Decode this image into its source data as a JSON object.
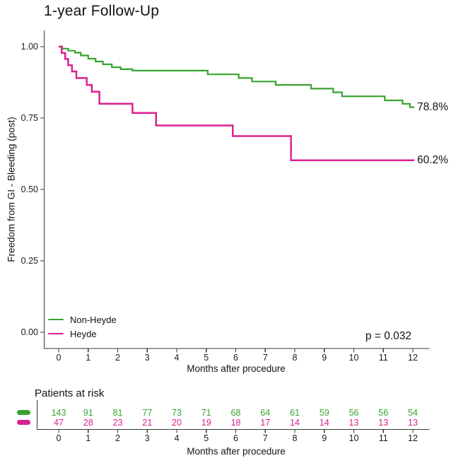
{
  "chart_data": {
    "type": "line",
    "subtype": "kaplan-meier-step",
    "title": "1-year Follow-Up",
    "xlabel": "Months after procedure",
    "ylabel": "Freedom from GI - Bleeding (post)",
    "xlim": [
      0,
      12
    ],
    "ylim": [
      0.0,
      1.0
    ],
    "xticks": [
      0,
      1,
      2,
      3,
      4,
      5,
      6,
      7,
      8,
      9,
      10,
      11,
      12
    ],
    "ytick_labels": [
      "1.00",
      "0.75",
      "0.50",
      "0.25",
      "0.00"
    ],
    "ytick_values": [
      1.0,
      0.75,
      0.5,
      0.25,
      0.0
    ],
    "grid": false,
    "legend_position": "inside-bottom-left",
    "annotation": "p = 0.032",
    "series": [
      {
        "name": "Non-Heyde",
        "color": "#36a42e",
        "end_label": "78.8%",
        "steps": [
          [
            0,
            1.0
          ],
          [
            0.12,
            0.993
          ],
          [
            0.32,
            0.986
          ],
          [
            0.55,
            0.979
          ],
          [
            0.75,
            0.969
          ],
          [
            1.0,
            0.958
          ],
          [
            1.25,
            0.948
          ],
          [
            1.5,
            0.938
          ],
          [
            1.8,
            0.928
          ],
          [
            2.1,
            0.921
          ],
          [
            2.5,
            0.916
          ],
          [
            5.05,
            0.903
          ],
          [
            6.1,
            0.89
          ],
          [
            6.55,
            0.878
          ],
          [
            7.35,
            0.866
          ],
          [
            8.55,
            0.853
          ],
          [
            9.3,
            0.84
          ],
          [
            9.6,
            0.826
          ],
          [
            11.05,
            0.812
          ],
          [
            11.65,
            0.8
          ],
          [
            11.9,
            0.788
          ],
          [
            12.05,
            0.788
          ]
        ]
      },
      {
        "name": "Heyde",
        "color": "#db2092",
        "end_label": "60.2%",
        "steps": [
          [
            0,
            1.0
          ],
          [
            0.1,
            0.978
          ],
          [
            0.22,
            0.957
          ],
          [
            0.32,
            0.935
          ],
          [
            0.45,
            0.913
          ],
          [
            0.6,
            0.89
          ],
          [
            0.95,
            0.866
          ],
          [
            1.12,
            0.842
          ],
          [
            1.38,
            0.8
          ],
          [
            2.5,
            0.768
          ],
          [
            3.3,
            0.724
          ],
          [
            5.9,
            0.687
          ],
          [
            7.87,
            0.602
          ],
          [
            12.05,
            0.602
          ]
        ]
      }
    ],
    "risk_table": {
      "title": "Patients at risk",
      "xlabel": "Months after procedure",
      "months": [
        0,
        1,
        2,
        3,
        4,
        5,
        6,
        7,
        8,
        9,
        10,
        11,
        12
      ],
      "rows": [
        {
          "name": "Non-Heyde",
          "color": "#36a42e",
          "counts": [
            143,
            91,
            81,
            77,
            73,
            71,
            68,
            64,
            61,
            59,
            56,
            56,
            54
          ]
        },
        {
          "name": "Heyde",
          "color": "#db2092",
          "counts": [
            47,
            28,
            23,
            21,
            20,
            19,
            18,
            17,
            14,
            14,
            13,
            13,
            13
          ]
        }
      ]
    }
  }
}
